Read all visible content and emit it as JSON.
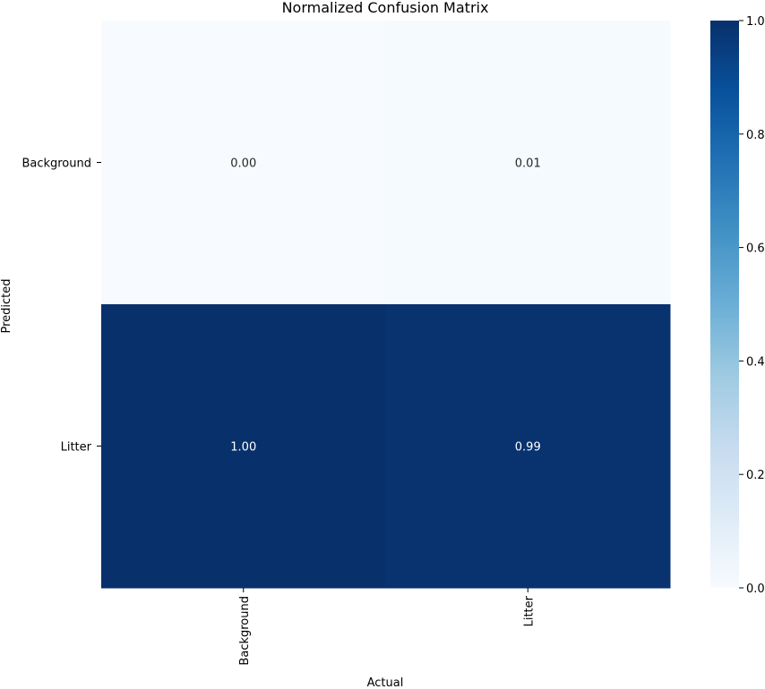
{
  "chart_data": {
    "type": "heatmap",
    "title": "Normalized Confusion Matrix",
    "xlabel": "Actual",
    "ylabel": "Predicted",
    "x_categories": [
      "Background",
      "Litter"
    ],
    "y_categories": [
      "Background",
      "Litter"
    ],
    "values": [
      [
        0.0,
        0.01
      ],
      [
        1.0,
        0.99
      ]
    ],
    "value_labels": [
      [
        "0.00",
        "0.01"
      ],
      [
        "1.00",
        "0.99"
      ]
    ],
    "colormap": "Blues",
    "colorbar": {
      "range": [
        0,
        1
      ],
      "ticks": [
        0.0,
        0.2,
        0.4,
        0.6,
        0.8,
        1.0
      ],
      "tick_labels": [
        "0.0",
        "0.2",
        "0.4",
        "0.6",
        "0.8",
        "1.0"
      ]
    },
    "grid": false
  }
}
